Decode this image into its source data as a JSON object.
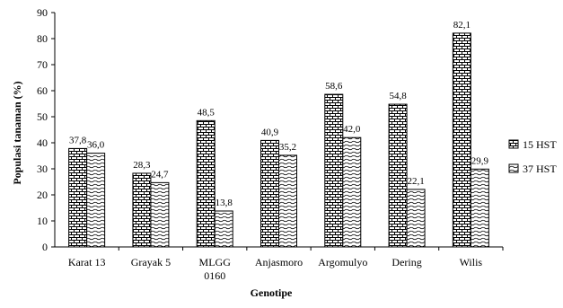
{
  "chart_data": {
    "type": "bar",
    "title": "",
    "xlabel": "Genotipe",
    "ylabel": "Populasi tanaman (%)",
    "ylim": [
      0,
      90
    ],
    "yticks": [
      "0",
      "10",
      "20",
      "30",
      "40",
      "50",
      "60",
      "70",
      "80",
      "90"
    ],
    "ytick_values": [
      0,
      10,
      20,
      30,
      40,
      50,
      60,
      70,
      80,
      90
    ],
    "grid": false,
    "legend_position": "right",
    "categories": [
      [
        "Karat 13"
      ],
      [
        "Grayak 5"
      ],
      [
        "MLGG",
        "0160"
      ],
      [
        "Anjasmoro"
      ],
      [
        "Argomulyo"
      ],
      [
        "Dering"
      ],
      [
        "Wilis"
      ]
    ],
    "series": [
      {
        "name": "15 HST",
        "pattern": "brick",
        "values": [
          37.8,
          28.3,
          48.5,
          40.9,
          58.6,
          54.8,
          82.1
        ],
        "labels": [
          "37,8",
          "28,3",
          "48,5",
          "40,9",
          "58,6",
          "54,8",
          "82,1"
        ]
      },
      {
        "name": "37 HST",
        "pattern": "wave",
        "values": [
          36.0,
          24.7,
          13.8,
          35.2,
          42.0,
          22.1,
          29.9
        ],
        "labels": [
          "36,0",
          "24,7",
          "13,8",
          "35,2",
          "42,0",
          "22,1",
          "29,9"
        ]
      }
    ],
    "colors": {
      "bar_stroke": "#000000",
      "pattern_ink": "#000000",
      "background": "#ffffff"
    }
  }
}
